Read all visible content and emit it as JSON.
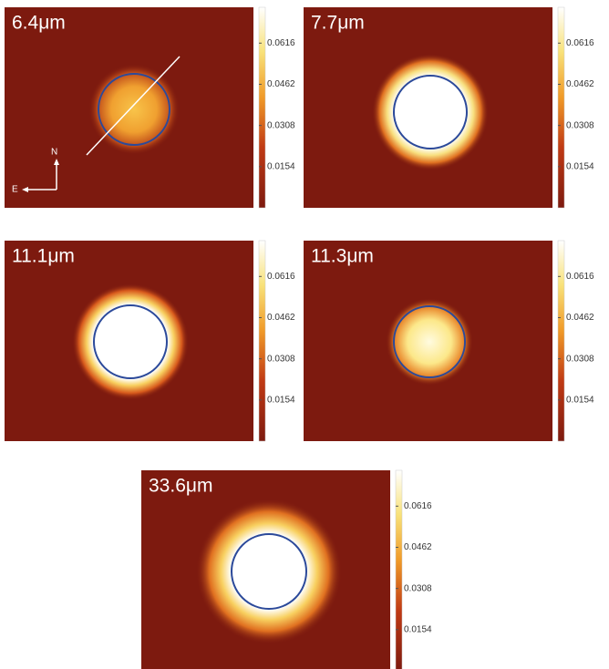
{
  "panels": [
    {
      "label": "6.4μm"
    },
    {
      "label": "7.7μm"
    },
    {
      "label": "11.1μm"
    },
    {
      "label": "11.3μm"
    },
    {
      "label": "33.6μm"
    }
  ],
  "colorbar": {
    "clim": [
      0,
      0.075
    ],
    "ticks": [
      0.0154,
      0.0308,
      0.0462,
      0.0616
    ]
  },
  "compass": {
    "north": "N",
    "east": "E"
  }
}
